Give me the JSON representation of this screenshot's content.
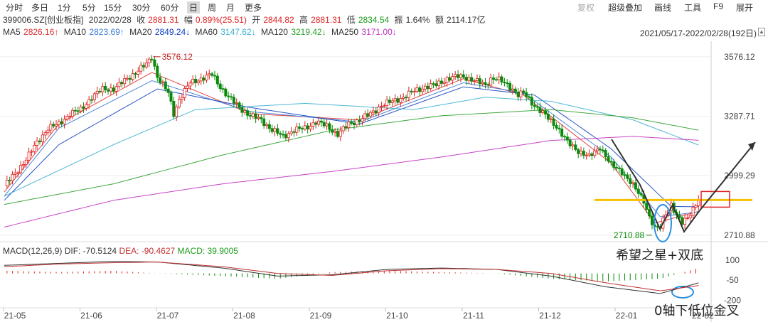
{
  "toolbar": {
    "left": [
      "分时",
      "多日",
      "1分",
      "5分",
      "15分",
      "30分",
      "60分",
      "日",
      "周",
      "月",
      "更多"
    ],
    "active": "日",
    "right": [
      "复权",
      "超级叠加",
      "画线",
      "工具",
      "F9",
      "展开"
    ]
  },
  "quote": {
    "code": "399006.SZ[创业板指]",
    "date": "2022/02/28",
    "close_label": "收",
    "close": "2881.31",
    "change_label": "幅",
    "change": "0.89%(25.51)",
    "open_label": "开",
    "open": "2844.82",
    "high_label": "高",
    "high": "2881.31",
    "low_label": "低",
    "low": "2834.54",
    "amp_label": "振",
    "amp": "1.64%",
    "amount_label": "额",
    "amount": "2114.17亿"
  },
  "ma_legend": [
    {
      "label": "MA5",
      "value": "2826.16↑",
      "color": "#e03030"
    },
    {
      "label": "MA10",
      "value": "2823.69↑",
      "color": "#3a7ad8"
    },
    {
      "label": "MA20",
      "value": "2849.24↓",
      "color": "#1040c0"
    },
    {
      "label": "MA60",
      "value": "3147.62↓",
      "color": "#3ab0d0"
    },
    {
      "label": "MA120",
      "value": "3219.42↓",
      "color": "#2aa02a"
    },
    {
      "label": "MA250",
      "value": "3171.00↓",
      "color": "#c030c0"
    }
  ],
  "range": "2021/05/17-2022/02/28(192日)",
  "range_icon": "▲",
  "macd": {
    "title": "MACD(12,26,9)",
    "dif_label": "DIF:",
    "dif": "-70.5124",
    "dea_label": "DEA:",
    "dea": "-90.4627",
    "macd_label": "MACD:",
    "macd": "39.9005"
  },
  "annotations": {
    "pattern": "希望之星+双底",
    "cross": "0轴下低位金叉",
    "resistance_color": "#f5c000",
    "box_color": "#e02020",
    "circle_color": "#2a90e0"
  },
  "chart_data": [
    {
      "type": "candlestick",
      "y_ticks": [
        3576.12,
        3287.71,
        2999.29,
        2710.88
      ],
      "y_tick_labels": [
        "3576.12",
        "3287.71",
        "2999.29",
        "2710.88"
      ],
      "ylim": [
        2700,
        3610
      ],
      "x_tick_labels": [
        "21-05",
        "21-06",
        "21-07",
        "21-08",
        "21-09",
        "21-10",
        "21-11",
        "21-12",
        "22-01",
        "22-02"
      ],
      "peak_label": "3576.12",
      "trough_label": "2710.88",
      "resistance_level": 2881.31,
      "close_points": [
        [
          0,
          2950
        ],
        [
          4,
          3010
        ],
        [
          8,
          3080
        ],
        [
          12,
          3160
        ],
        [
          16,
          3230
        ],
        [
          20,
          3250
        ],
        [
          24,
          3300
        ],
        [
          28,
          3320
        ],
        [
          32,
          3380
        ],
        [
          36,
          3420
        ],
        [
          40,
          3420
        ],
        [
          44,
          3460
        ],
        [
          48,
          3500
        ],
        [
          52,
          3540
        ],
        [
          54,
          3576
        ],
        [
          56,
          3480
        ],
        [
          60,
          3400
        ],
        [
          62,
          3300
        ],
        [
          64,
          3370
        ],
        [
          68,
          3450
        ],
        [
          72,
          3470
        ],
        [
          76,
          3490
        ],
        [
          78,
          3450
        ],
        [
          82,
          3380
        ],
        [
          86,
          3330
        ],
        [
          90,
          3290
        ],
        [
          94,
          3270
        ],
        [
          98,
          3220
        ],
        [
          102,
          3190
        ],
        [
          106,
          3220
        ],
        [
          110,
          3230
        ],
        [
          114,
          3260
        ],
        [
          118,
          3240
        ],
        [
          122,
          3200
        ],
        [
          126,
          3250
        ],
        [
          130,
          3270
        ],
        [
          134,
          3300
        ],
        [
          138,
          3340
        ],
        [
          142,
          3360
        ],
        [
          146,
          3380
        ],
        [
          150,
          3410
        ],
        [
          154,
          3430
        ],
        [
          158,
          3440
        ],
        [
          162,
          3470
        ],
        [
          166,
          3480
        ],
        [
          168,
          3480
        ],
        [
          172,
          3460
        ],
        [
          176,
          3440
        ],
        [
          178,
          3470
        ],
        [
          180,
          3470
        ],
        [
          184,
          3440
        ],
        [
          186,
          3420
        ],
        [
          188,
          3390
        ],
        [
          190,
          3400
        ],
        [
          194,
          3340
        ],
        [
          198,
          3290
        ],
        [
          202,
          3240
        ],
        [
          206,
          3160
        ],
        [
          210,
          3120
        ],
        [
          214,
          3090
        ],
        [
          218,
          3140
        ],
        [
          222,
          3050
        ],
        [
          226,
          3020
        ],
        [
          230,
          2950
        ],
        [
          234,
          2880
        ],
        [
          236,
          2800
        ],
        [
          238,
          2740
        ],
        [
          240,
          2750
        ],
        [
          242,
          2820
        ],
        [
          244,
          2860
        ],
        [
          246,
          2800
        ],
        [
          248,
          2770
        ],
        [
          250,
          2800
        ],
        [
          252,
          2840
        ],
        [
          254,
          2881
        ]
      ],
      "ma_series": [
        {
          "name": "MA5",
          "points": [
            [
              0,
              2920
            ],
            [
              20,
              3250
            ],
            [
              54,
              3500
            ],
            [
              90,
              3300
            ],
            [
              130,
              3270
            ],
            [
              168,
              3470
            ],
            [
              190,
              3390
            ],
            [
              222,
              3060
            ],
            [
              238,
              2770
            ],
            [
              254,
              2826
            ]
          ]
        },
        {
          "name": "MA10",
          "points": [
            [
              0,
              2900
            ],
            [
              20,
              3230
            ],
            [
              54,
              3460
            ],
            [
              90,
              3310
            ],
            [
              130,
              3260
            ],
            [
              168,
              3450
            ],
            [
              190,
              3400
            ],
            [
              222,
              3090
            ],
            [
              240,
              2800
            ],
            [
              254,
              2824
            ]
          ]
        },
        {
          "name": "MA20",
          "points": [
            [
              0,
              2880
            ],
            [
              20,
              3150
            ],
            [
              56,
              3420
            ],
            [
              90,
              3330
            ],
            [
              130,
              3250
            ],
            [
              168,
              3430
            ],
            [
              194,
              3390
            ],
            [
              222,
              3130
            ],
            [
              244,
              2850
            ],
            [
              254,
              2849
            ]
          ]
        },
        {
          "name": "MA60",
          "points": [
            [
              0,
              2900
            ],
            [
              40,
              3150
            ],
            [
              70,
              3320
            ],
            [
              110,
              3350
            ],
            [
              150,
              3320
            ],
            [
              176,
              3380
            ],
            [
              200,
              3360
            ],
            [
              230,
              3270
            ],
            [
              254,
              3148
            ]
          ]
        },
        {
          "name": "MA120",
          "points": [
            [
              0,
              2860
            ],
            [
              40,
              2960
            ],
            [
              80,
              3100
            ],
            [
              120,
              3220
            ],
            [
              160,
              3290
            ],
            [
              200,
              3320
            ],
            [
              230,
              3280
            ],
            [
              254,
              3220
            ]
          ]
        },
        {
          "name": "MA250",
          "points": [
            [
              0,
              2750
            ],
            [
              40,
              2880
            ],
            [
              80,
              2960
            ],
            [
              120,
              3020
            ],
            [
              160,
              3090
            ],
            [
              200,
              3170
            ],
            [
              230,
              3190
            ],
            [
              254,
              3171
            ]
          ]
        }
      ]
    },
    {
      "type": "macd",
      "y_ticks": [
        100,
        -50,
        -200
      ],
      "y_tick_labels": [
        "100",
        "-50",
        "-200"
      ],
      "ylim": [
        -230,
        120
      ],
      "dif": [
        [
          0,
          60
        ],
        [
          20,
          75
        ],
        [
          40,
          90
        ],
        [
          56,
          85
        ],
        [
          80,
          40
        ],
        [
          100,
          -20
        ],
        [
          120,
          -10
        ],
        [
          140,
          30
        ],
        [
          160,
          40
        ],
        [
          180,
          30
        ],
        [
          200,
          -20
        ],
        [
          220,
          -100
        ],
        [
          240,
          -150
        ],
        [
          254,
          -70.5
        ]
      ],
      "dea": [
        [
          0,
          50
        ],
        [
          20,
          70
        ],
        [
          40,
          80
        ],
        [
          56,
          85
        ],
        [
          80,
          50
        ],
        [
          100,
          0
        ],
        [
          120,
          -15
        ],
        [
          140,
          20
        ],
        [
          160,
          35
        ],
        [
          180,
          30
        ],
        [
          200,
          0
        ],
        [
          220,
          -70
        ],
        [
          240,
          -130
        ],
        [
          254,
          -90.5
        ]
      ]
    }
  ]
}
